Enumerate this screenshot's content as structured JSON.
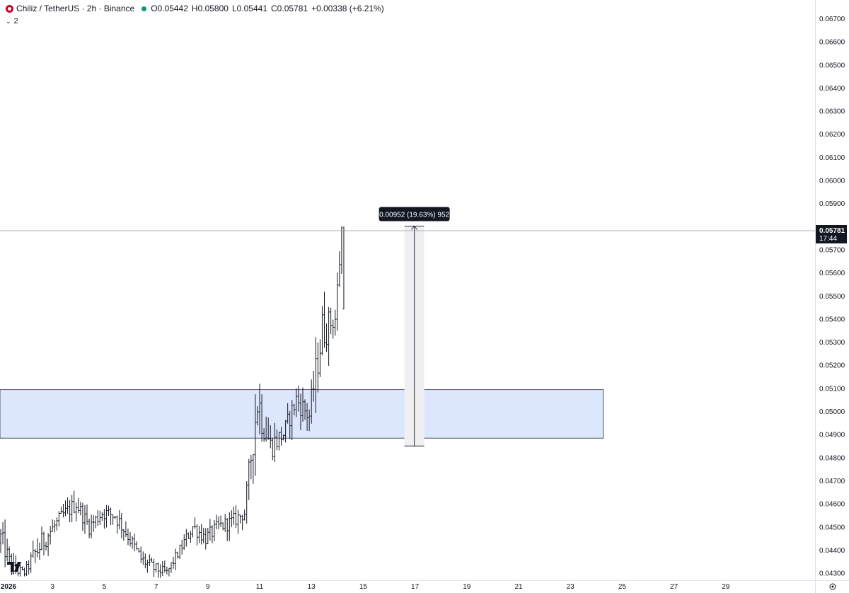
{
  "header": {
    "symbol": "Chiliz / TetherUS · 2h · Binance",
    "open": "O0.05442",
    "high": "H0.05800",
    "low": "L0.05441",
    "close": "C0.05781",
    "change": "+0.00338 (+6.21%)",
    "indicator_count": "2"
  },
  "price_axis": {
    "labels": [
      "0.06700",
      "0.06600",
      "0.06500",
      "0.06400",
      "0.06300",
      "0.06200",
      "0.06100",
      "0.06000",
      "0.05900",
      "0.05700",
      "0.05600",
      "0.05500",
      "0.05400",
      "0.05300",
      "0.05200",
      "0.05100",
      "0.05000",
      "0.04900",
      "0.04800",
      "0.04700",
      "0.04600",
      "0.04500",
      "0.04400",
      "0.04300"
    ],
    "current_price": "0.05781",
    "countdown": "17:44"
  },
  "time_axis": {
    "labels": [
      "2026",
      "3",
      "5",
      "7",
      "9",
      "11",
      "13",
      "15",
      "17",
      "19",
      "21",
      "23",
      "25",
      "27",
      "29"
    ]
  },
  "measure_label": "0.00952 (19.63%) 952",
  "colors": {
    "zone_fill": "#dce6fc",
    "zone_border": "#2a2e39",
    "candle": "#131722",
    "axis_text": "#131722",
    "grid_line": "#e0e3eb",
    "current_price_bg": "#131722",
    "measure_fill": "#f0f0f3"
  },
  "chart_data": {
    "type": "candlestick",
    "symbol": "Chiliz / TetherUS",
    "interval": "2h",
    "exchange": "Binance",
    "ylim": [
      0.0427,
      0.0675
    ],
    "x_range_days": [
      1,
      30
    ],
    "last_price": 0.05781,
    "zone": {
      "price_low": 0.04883,
      "price_high": 0.05093,
      "day_start": 1,
      "day_end": 24.3
    },
    "measure": {
      "day": 17.0,
      "price_from": 0.04849,
      "price_to": 0.05801,
      "change": 0.00952,
      "percent": 19.63,
      "ticks": 952
    },
    "candles_approx": [
      [
        1.0,
        0.0443,
        0.0459,
        0.043,
        0.0448
      ],
      [
        1.5,
        0.0448,
        0.0452,
        0.0429,
        0.0432
      ],
      [
        2.0,
        0.0432,
        0.0436,
        0.0428,
        0.043
      ],
      [
        2.5,
        0.0435,
        0.0465,
        0.0432,
        0.044
      ],
      [
        3.0,
        0.044,
        0.0452,
        0.0434,
        0.0448
      ],
      [
        3.5,
        0.0448,
        0.046,
        0.044,
        0.0455
      ],
      [
        4.0,
        0.0455,
        0.0468,
        0.0448,
        0.046
      ],
      [
        4.5,
        0.046,
        0.0464,
        0.0445,
        0.045
      ],
      [
        5.0,
        0.045,
        0.0462,
        0.0445,
        0.0456
      ],
      [
        5.5,
        0.0456,
        0.047,
        0.0448,
        0.0455
      ],
      [
        6.0,
        0.0455,
        0.046,
        0.0442,
        0.0446
      ],
      [
        6.5,
        0.0446,
        0.045,
        0.0432,
        0.0436
      ],
      [
        7.0,
        0.0436,
        0.0442,
        0.0428,
        0.0432
      ],
      [
        7.5,
        0.0432,
        0.0438,
        0.0427,
        0.043
      ],
      [
        8.0,
        0.043,
        0.0442,
        0.0428,
        0.044
      ],
      [
        8.5,
        0.044,
        0.0456,
        0.0438,
        0.045
      ],
      [
        9.0,
        0.045,
        0.0456,
        0.0438,
        0.0445
      ],
      [
        9.5,
        0.0445,
        0.0458,
        0.044,
        0.045
      ],
      [
        10.0,
        0.045,
        0.046,
        0.0442,
        0.0452
      ],
      [
        10.5,
        0.0452,
        0.046,
        0.0442,
        0.0456
      ],
      [
        11.0,
        0.0456,
        0.0518,
        0.0454,
        0.0505
      ],
      [
        11.5,
        0.0505,
        0.0512,
        0.0478,
        0.0485
      ],
      [
        12.0,
        0.0485,
        0.05,
        0.0478,
        0.049
      ],
      [
        12.5,
        0.049,
        0.0513,
        0.0485,
        0.0505
      ],
      [
        13.0,
        0.0505,
        0.0512,
        0.0483,
        0.0498
      ],
      [
        13.5,
        0.0498,
        0.0552,
        0.0496,
        0.0535
      ],
      [
        14.0,
        0.0535,
        0.055,
        0.0528,
        0.054
      ],
      [
        14.25,
        0.05442,
        0.058,
        0.05441,
        0.05781
      ]
    ]
  }
}
